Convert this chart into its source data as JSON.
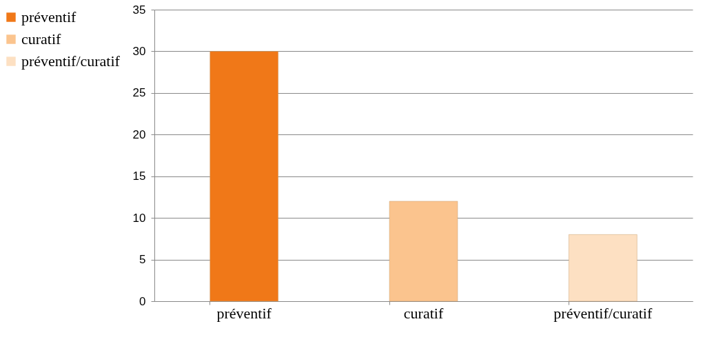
{
  "chart_data": {
    "type": "bar",
    "categories": [
      "préventif",
      "curatif",
      "préventif/curatif"
    ],
    "series": [
      {
        "name": "préventif",
        "color": "#f07818",
        "values": [
          30,
          null,
          null
        ]
      },
      {
        "name": "curatif",
        "color": "#fbc48e",
        "values": [
          null,
          12,
          null
        ]
      },
      {
        "name": "préventif/curatif",
        "color": "#fde0c2",
        "values": [
          null,
          null,
          8
        ]
      }
    ],
    "ylim": [
      0,
      35
    ],
    "yticks": [
      0,
      5,
      10,
      15,
      20,
      25,
      30,
      35
    ],
    "grid": "y",
    "legend": "left"
  }
}
